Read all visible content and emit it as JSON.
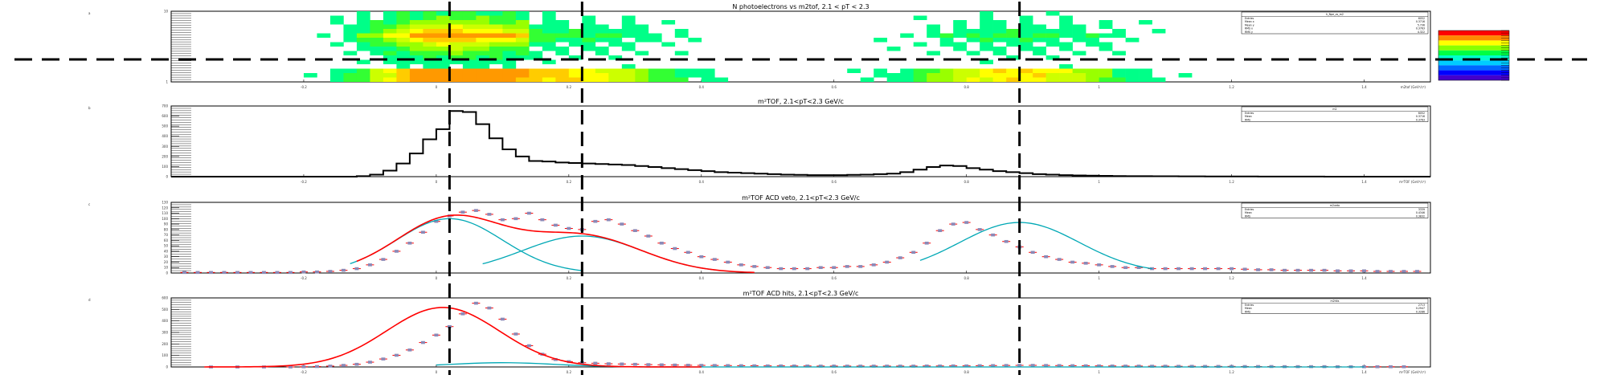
{
  "colors": {
    "frame": "#000000",
    "fit_total": "#ff0000",
    "fit_component": "#00a8b5",
    "marker": "#8a8ab8",
    "marker_err": "#ff0000",
    "dashed": "#000000"
  },
  "chart_data": [
    {
      "type": "heatmap",
      "title": "N photoelectrons vs m2tof, 2.1 < pT < 2.3",
      "xlabel": "m2tof (GeV²/c⁴)",
      "ylabel": "",
      "xlim": [
        -0.4,
        1.5
      ],
      "ylim": [
        0,
        15
      ],
      "grid": false,
      "legend": "top-right stats box",
      "palette": "rainbow (blue→cyan→green→yellow→orange)",
      "stats": {
        "name": "h_Npe_vs_m2",
        "entries": "6052",
        "mean_x": "0.3716",
        "mean_y": "5.736",
        "rms_x": "0.3763",
        "rms_y": "4.322"
      }
    },
    {
      "type": "bar",
      "title": "m²TOF, 2.1<pT<2.3 GeV/c",
      "xlabel": "m²TOF (GeV²/c⁴)",
      "ylabel": "",
      "xlim": [
        -0.4,
        1.5
      ],
      "ylim": [
        0,
        700
      ],
      "grid": false,
      "legend": "top-right stats box",
      "x": [
        -0.4,
        -0.38,
        -0.36,
        -0.34,
        -0.32,
        -0.3,
        -0.28,
        -0.26,
        -0.24,
        -0.22,
        -0.2,
        -0.18,
        -0.16,
        -0.14,
        -0.12,
        -0.1,
        -0.08,
        -0.06,
        -0.04,
        -0.02,
        0.0,
        0.02,
        0.04,
        0.06,
        0.08,
        0.1,
        0.12,
        0.14,
        0.16,
        0.18,
        0.2,
        0.22,
        0.24,
        0.26,
        0.28,
        0.3,
        0.32,
        0.34,
        0.36,
        0.38,
        0.4,
        0.42,
        0.44,
        0.46,
        0.48,
        0.5,
        0.52,
        0.54,
        0.56,
        0.58,
        0.6,
        0.62,
        0.64,
        0.66,
        0.68,
        0.7,
        0.72,
        0.74,
        0.76,
        0.78,
        0.8,
        0.82,
        0.84,
        0.86,
        0.88,
        0.9,
        0.92,
        0.94,
        0.96,
        0.98,
        1.0,
        1.02,
        1.04,
        1.06,
        1.08,
        1.1,
        1.12,
        1.14,
        1.16,
        1.18,
        1.2,
        1.22,
        1.24,
        1.26,
        1.28,
        1.3,
        1.32,
        1.34,
        1.36,
        1.38,
        1.4,
        1.42,
        1.44,
        1.46,
        1.48
      ],
      "values": [
        0,
        0,
        0,
        0,
        0,
        0,
        0,
        0,
        0,
        0,
        0,
        0,
        0,
        0,
        5,
        20,
        60,
        130,
        230,
        370,
        470,
        650,
        640,
        520,
        380,
        270,
        200,
        155,
        150,
        140,
        135,
        130,
        125,
        120,
        115,
        105,
        95,
        85,
        75,
        65,
        55,
        45,
        40,
        35,
        30,
        25,
        20,
        18,
        15,
        15,
        15,
        18,
        20,
        25,
        30,
        45,
        70,
        95,
        110,
        105,
        85,
        70,
        55,
        45,
        35,
        25,
        20,
        15,
        12,
        10,
        8,
        6,
        5,
        5,
        4,
        4,
        3,
        3,
        2,
        2,
        2,
        2,
        1,
        1,
        1,
        1,
        1,
        0,
        0,
        0,
        0,
        0,
        0,
        0,
        0
      ],
      "stats": {
        "name": "m2",
        "entries": "6052",
        "mean": "0.3716",
        "rms": "0.3763"
      }
    },
    {
      "type": "scatter",
      "title": "m²TOF ACD veto, 2.1<pT<2.3 GeV/c",
      "xlabel": "",
      "ylabel": "",
      "xlim": [
        -0.4,
        1.5
      ],
      "ylim": [
        0,
        130
      ],
      "grid": false,
      "legend": "top-right stats box",
      "x": [
        -0.38,
        -0.36,
        -0.34,
        -0.32,
        -0.3,
        -0.28,
        -0.26,
        -0.24,
        -0.22,
        -0.2,
        -0.18,
        -0.16,
        -0.14,
        -0.12,
        -0.1,
        -0.08,
        -0.06,
        -0.04,
        -0.02,
        0.0,
        0.02,
        0.04,
        0.06,
        0.08,
        0.1,
        0.12,
        0.14,
        0.16,
        0.18,
        0.2,
        0.22,
        0.24,
        0.26,
        0.28,
        0.3,
        0.32,
        0.34,
        0.36,
        0.38,
        0.4,
        0.42,
        0.44,
        0.46,
        0.48,
        0.5,
        0.52,
        0.54,
        0.56,
        0.58,
        0.6,
        0.62,
        0.64,
        0.66,
        0.68,
        0.7,
        0.72,
        0.74,
        0.76,
        0.78,
        0.8,
        0.82,
        0.84,
        0.86,
        0.88,
        0.9,
        0.92,
        0.94,
        0.96,
        0.98,
        1.0,
        1.02,
        1.04,
        1.06,
        1.08,
        1.1,
        1.12,
        1.14,
        1.16,
        1.18,
        1.2,
        1.22,
        1.24,
        1.26,
        1.28,
        1.3,
        1.32,
        1.34,
        1.36,
        1.38,
        1.4,
        1.42,
        1.44,
        1.46,
        1.48
      ],
      "values": [
        1,
        1,
        1,
        1,
        1,
        1,
        1,
        1,
        1,
        2,
        2,
        3,
        5,
        8,
        15,
        25,
        40,
        55,
        75,
        95,
        105,
        112,
        115,
        108,
        98,
        100,
        110,
        98,
        88,
        82,
        80,
        95,
        98,
        90,
        78,
        68,
        55,
        45,
        38,
        30,
        25,
        20,
        15,
        12,
        10,
        8,
        8,
        8,
        10,
        10,
        12,
        12,
        15,
        20,
        28,
        38,
        55,
        78,
        90,
        93,
        80,
        70,
        58,
        48,
        38,
        30,
        25,
        20,
        18,
        15,
        12,
        10,
        10,
        8,
        8,
        8,
        8,
        8,
        8,
        8,
        7,
        6,
        6,
        5,
        5,
        5,
        5,
        4,
        4,
        4,
        3,
        3,
        3,
        3
      ],
      "fit": {
        "total": "sum of 3 gaussians",
        "components": [
          {
            "mean": 0.02,
            "sigma": 0.08,
            "amplitude": 100
          },
          {
            "mean": 0.22,
            "sigma": 0.09,
            "amplitude": 68
          },
          {
            "mean": 0.88,
            "sigma": 0.09,
            "amplitude": 93
          }
        ]
      },
      "stats": {
        "name": "m2veto",
        "entries": "3339",
        "mean": "0.4346",
        "rms": "0.3832"
      }
    },
    {
      "type": "scatter",
      "title": "m²TOF ACD hits, 2.1<pT<2.3 GeV/c",
      "xlabel": "m²TOF (GeV²/c⁴)",
      "ylabel": "",
      "xlim": [
        -0.4,
        1.5
      ],
      "ylim": [
        0,
        650
      ],
      "grid": false,
      "legend": "top-right stats box",
      "x": [
        -0.34,
        -0.3,
        -0.26,
        -0.22,
        -0.2,
        -0.18,
        -0.16,
        -0.14,
        -0.12,
        -0.1,
        -0.08,
        -0.06,
        -0.04,
        -0.02,
        0.0,
        0.02,
        0.04,
        0.06,
        0.08,
        0.1,
        0.12,
        0.14,
        0.16,
        0.18,
        0.2,
        0.22,
        0.24,
        0.26,
        0.28,
        0.3,
        0.32,
        0.34,
        0.36,
        0.38,
        0.4,
        0.42,
        0.44,
        0.46,
        0.48,
        0.5,
        0.52,
        0.54,
        0.56,
        0.58,
        0.6,
        0.62,
        0.64,
        0.66,
        0.68,
        0.7,
        0.72,
        0.74,
        0.76,
        0.78,
        0.8,
        0.82,
        0.84,
        0.86,
        0.88,
        0.9,
        0.92,
        0.94,
        0.96,
        0.98,
        1.0,
        1.02,
        1.04,
        1.06,
        1.08,
        1.1,
        1.12,
        1.14,
        1.16,
        1.18,
        1.2,
        1.22,
        1.24,
        1.26,
        1.28,
        1.3,
        1.32,
        1.34,
        1.36,
        1.38,
        1.4,
        1.42,
        1.44,
        1.46
      ],
      "values": [
        0,
        0,
        0,
        0,
        2,
        4,
        8,
        15,
        25,
        45,
        75,
        110,
        160,
        230,
        300,
        380,
        500,
        600,
        555,
        450,
        310,
        200,
        120,
        70,
        50,
        40,
        35,
        30,
        28,
        25,
        22,
        20,
        18,
        16,
        15,
        14,
        13,
        12,
        11,
        10,
        10,
        9,
        9,
        8,
        8,
        8,
        8,
        8,
        8,
        8,
        8,
        9,
        9,
        10,
        10,
        12,
        13,
        14,
        15,
        15,
        14,
        13,
        12,
        11,
        10,
        9,
        8,
        8,
        7,
        7,
        6,
        6,
        5,
        5,
        5,
        4,
        4,
        4,
        3,
        3,
        3,
        3,
        2,
        2,
        2,
        2,
        2,
        2
      ],
      "fit": {
        "total": "gaussian",
        "components": [
          {
            "mean": 0.01,
            "sigma": 0.085,
            "amplitude": 560
          },
          {
            "mean": 0.1,
            "sigma": 0.08,
            "amplitude": 40
          }
        ]
      },
      "stats": {
        "name": "m2hits",
        "entries": "2713",
        "mean": "0.2947",
        "rms": "0.3286"
      }
    }
  ],
  "axis_ticks": {
    "heatmap_x": [
      "-0.2",
      "0",
      "0.2",
      "0.4",
      "0.6",
      "0.8",
      "1",
      "1.2",
      "1.4"
    ],
    "heatmap_y": [
      "1",
      "10"
    ],
    "p1_y": [
      "0",
      "100",
      "200",
      "300",
      "400",
      "500",
      "600",
      "700"
    ],
    "p2_y": [
      "0",
      "10",
      "20",
      "30",
      "40",
      "50",
      "60",
      "70",
      "80",
      "90",
      "100",
      "110",
      "120",
      "130"
    ],
    "p3_y": [
      "0",
      "100",
      "200",
      "300",
      "400",
      "500",
      "600"
    ],
    "x": [
      "-0.2",
      "0",
      "0.2",
      "0.4",
      "0.6",
      "0.8",
      "1",
      "1.2",
      "1.4"
    ]
  },
  "pad_labels": [
    "a",
    "b",
    "c",
    "d"
  ],
  "stats_labels": {
    "entries": "Entries",
    "mean": "Mean",
    "rms": "RMS",
    "mean_x": "Mean x",
    "mean_y": "Mean y",
    "rms_x": "RMS x",
    "rms_y": "RMS y"
  }
}
